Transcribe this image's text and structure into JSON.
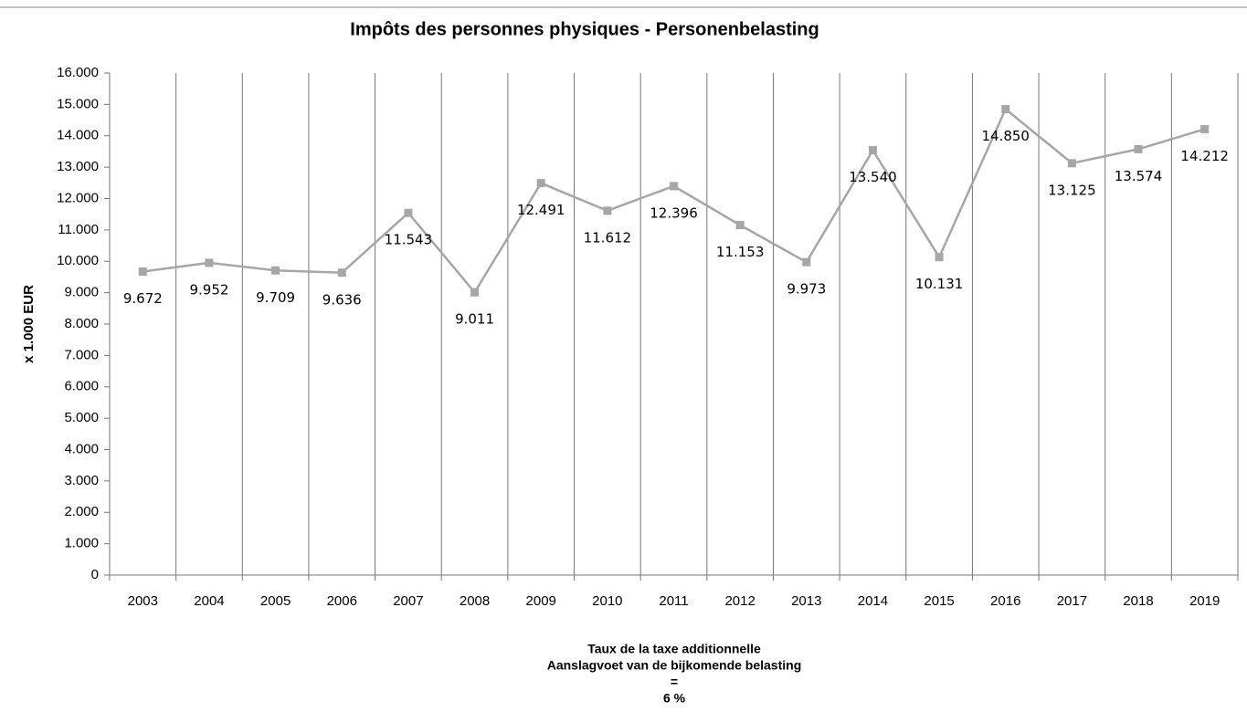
{
  "chart_data": {
    "type": "line",
    "title": "Impôts des personnes physiques - Personenbelasting",
    "ylabel": "x 1.000 EUR",
    "xlabel_lines": [
      "Taux de la taxe additionnelle",
      "Aanslagvoet  van de bijkomende belasting",
      "=",
      "6 %"
    ],
    "categories": [
      "2003",
      "2004",
      "2005",
      "2006",
      "2007",
      "2008",
      "2009",
      "2010",
      "2011",
      "2012",
      "2013",
      "2014",
      "2015",
      "2016",
      "2017",
      "2018",
      "2019"
    ],
    "series": [
      {
        "name": "Personenbelasting",
        "color": "#a6a6a6",
        "values": [
          9672,
          9952,
          9709,
          9636,
          11543,
          9011,
          12491,
          11612,
          12396,
          11153,
          9973,
          13540,
          10131,
          14850,
          13125,
          13574,
          14212
        ],
        "value_labels": [
          "9.672",
          "9.952",
          "9.709",
          "9.636",
          "11.543",
          "9.011",
          "12.491",
          "11.612",
          "12.396",
          "11.153",
          "9.973",
          "13.540",
          "10.131",
          "14.850",
          "13.125",
          "13.574",
          "14.212"
        ]
      }
    ],
    "ylim": [
      0,
      16000
    ],
    "yticks": [
      0,
      {
        "value": 1000,
        "label": "1.000"
      },
      {
        "value": 2000,
        "label": "2.000"
      },
      {
        "value": 3000,
        "label": "3.000"
      },
      {
        "value": 4000,
        "label": "4.000"
      },
      {
        "value": 5000,
        "label": "5.000"
      },
      {
        "value": 6000,
        "label": "6.000"
      },
      {
        "value": 7000,
        "label": "7.000"
      },
      {
        "value": 8000,
        "label": "8.000"
      },
      {
        "value": 9000,
        "label": "9.000"
      },
      {
        "value": 10000,
        "label": "10.000"
      },
      {
        "value": 11000,
        "label": "11.000"
      },
      {
        "value": 12000,
        "label": "12.000"
      },
      {
        "value": 13000,
        "label": "13.000"
      },
      {
        "value": 14000,
        "label": "14.000"
      },
      {
        "value": 15000,
        "label": "15.000"
      },
      {
        "value": 16000,
        "label": "16.000"
      }
    ]
  }
}
